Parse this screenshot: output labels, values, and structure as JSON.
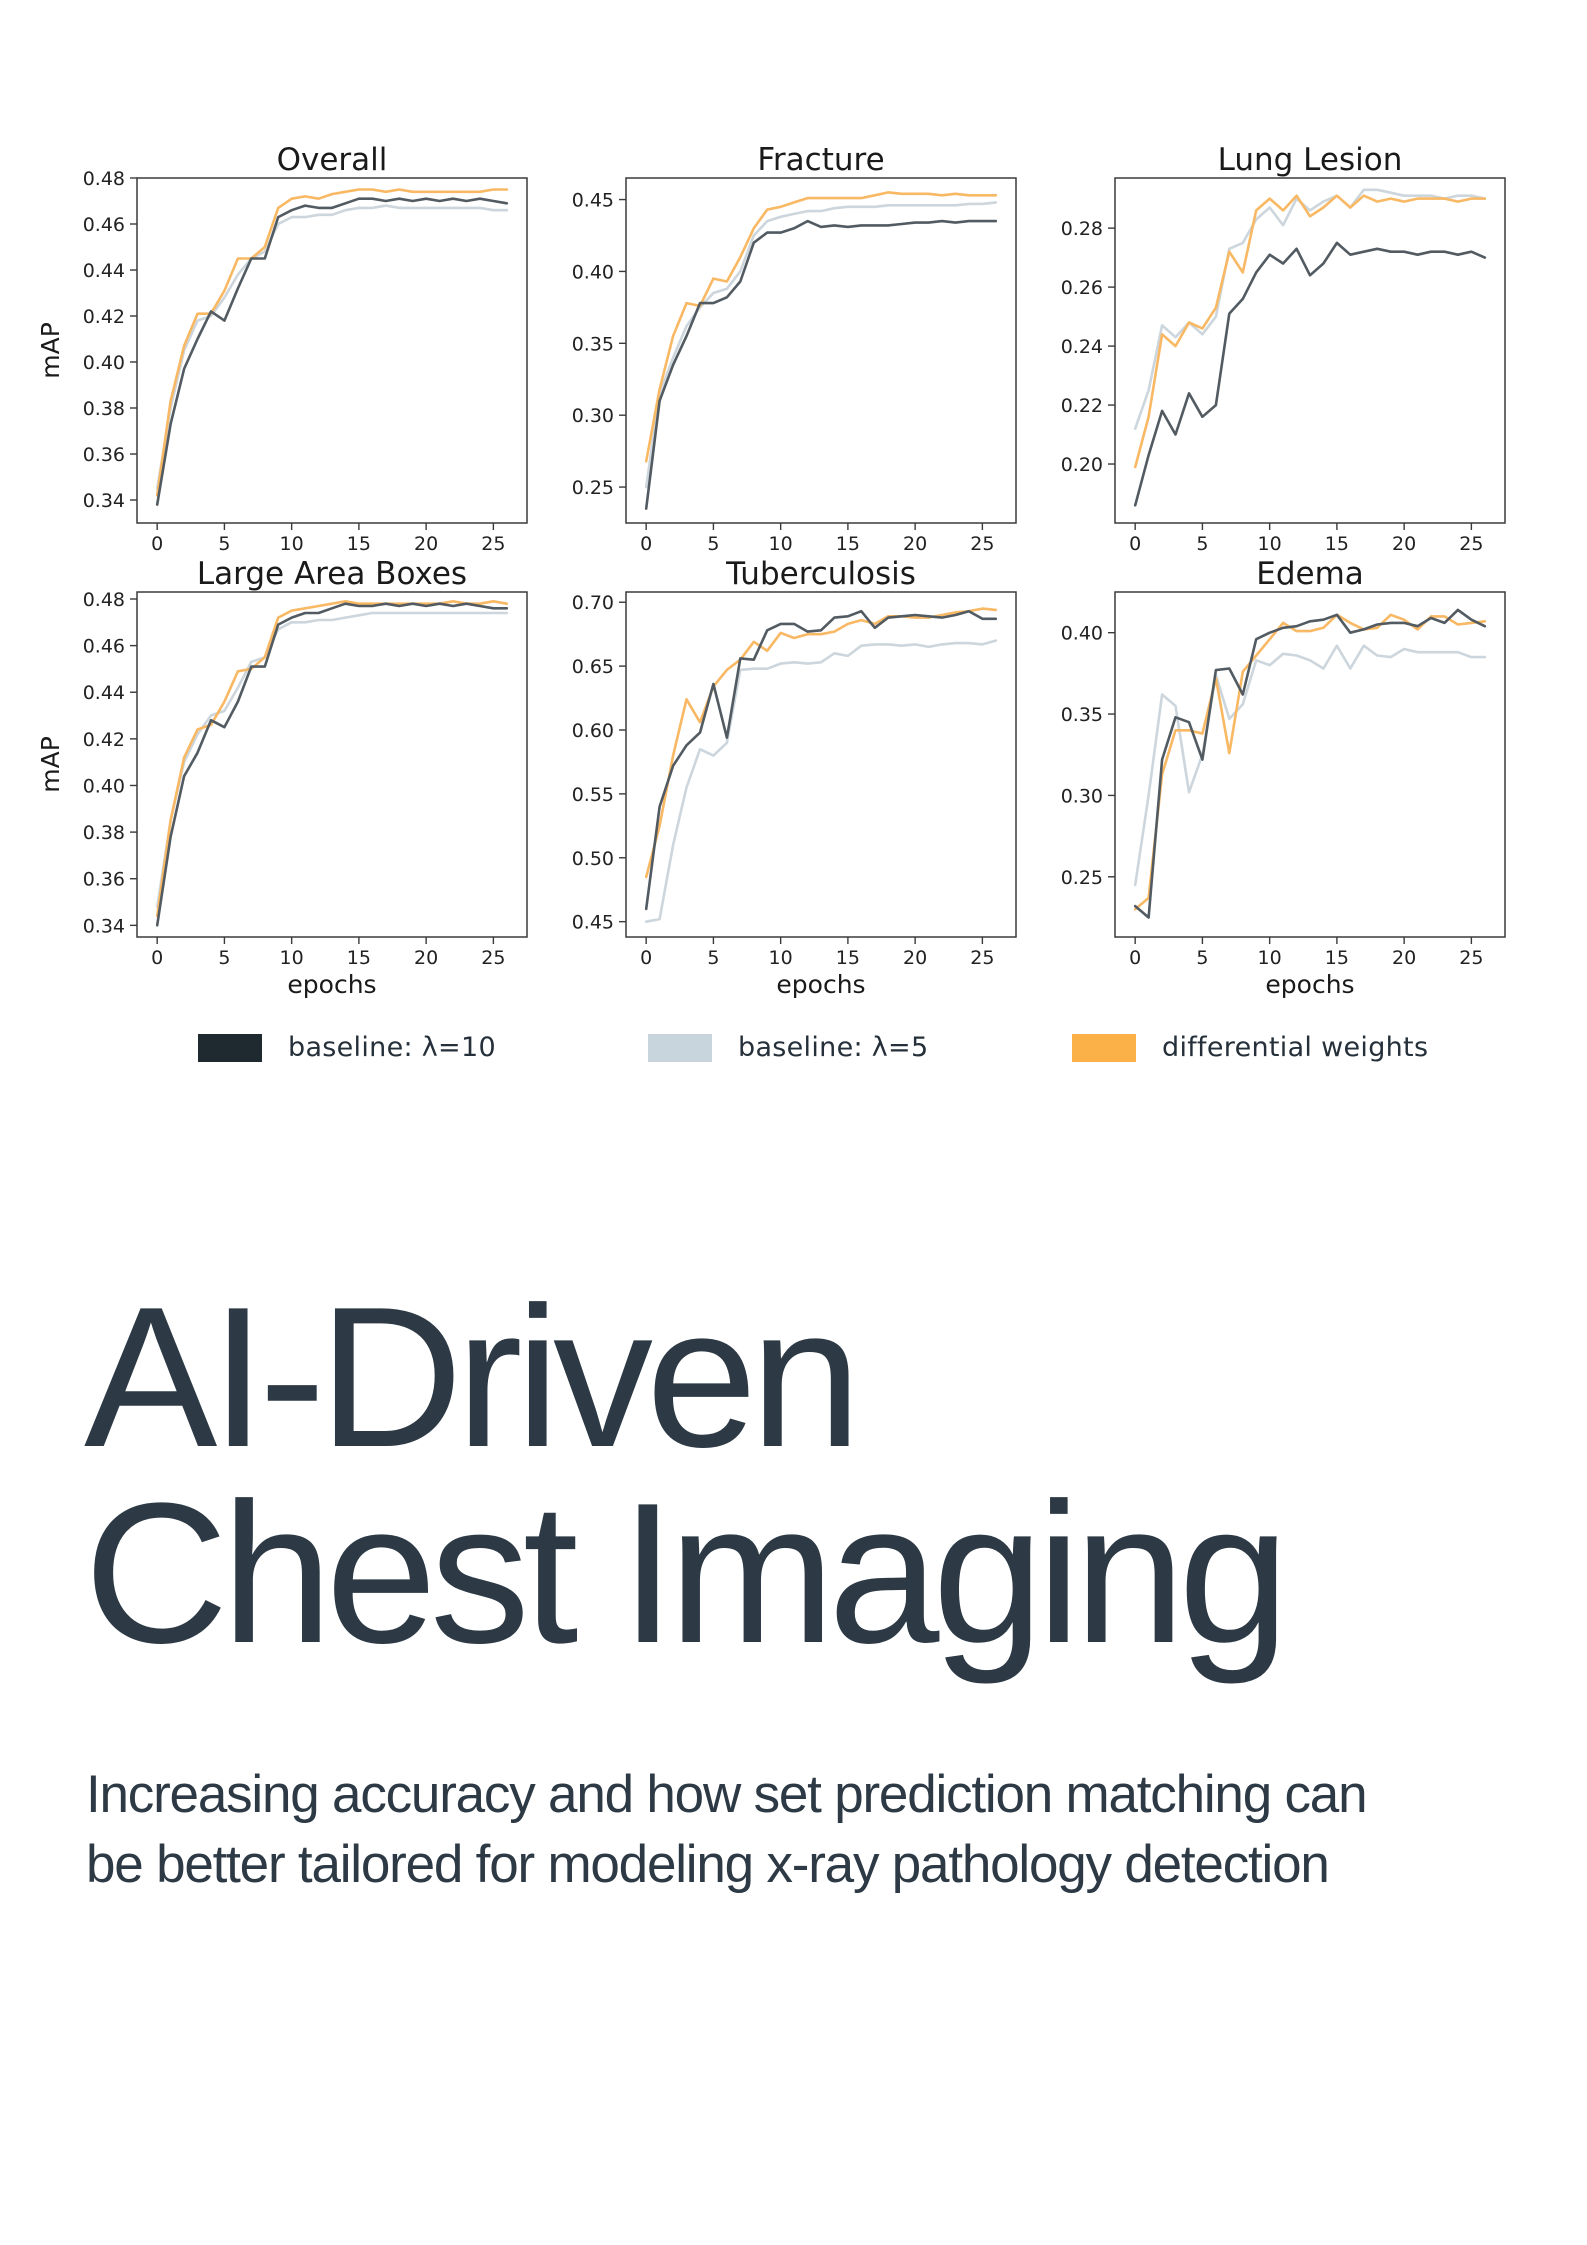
{
  "chart_data": [
    {
      "type": "line",
      "title": "Overall",
      "xlabel": "",
      "ylabel": "mAP",
      "xlim": [
        -1.5,
        27.5
      ],
      "ylim": [
        0.33,
        0.48
      ],
      "xticks": [
        0,
        5,
        10,
        15,
        20,
        25
      ],
      "yticks": [
        0.34,
        0.36,
        0.38,
        0.4,
        0.42,
        0.44,
        0.46,
        0.48
      ],
      "ytick_labels": [
        "0.34",
        "0.36",
        "0.38",
        "0.40",
        "0.42",
        "0.44",
        "0.46",
        "0.48"
      ],
      "x": [
        0,
        1,
        2,
        3,
        4,
        5,
        6,
        7,
        8,
        9,
        10,
        11,
        12,
        13,
        14,
        15,
        16,
        17,
        18,
        19,
        20,
        21,
        22,
        23,
        24,
        25,
        26
      ],
      "series": [
        {
          "name": "baseline: λ=10",
          "values": [
            0.338,
            0.373,
            0.397,
            0.41,
            0.422,
            0.418,
            0.432,
            0.445,
            0.445,
            0.463,
            0.466,
            0.468,
            0.467,
            0.467,
            0.469,
            0.471,
            0.471,
            0.47,
            0.471,
            0.47,
            0.471,
            0.47,
            0.471,
            0.47,
            0.471,
            0.47,
            0.469
          ]
        },
        {
          "name": "baseline: λ=5",
          "values": [
            0.345,
            0.38,
            0.405,
            0.418,
            0.42,
            0.428,
            0.438,
            0.445,
            0.448,
            0.46,
            0.463,
            0.463,
            0.464,
            0.464,
            0.466,
            0.467,
            0.467,
            0.468,
            0.467,
            0.467,
            0.467,
            0.467,
            0.467,
            0.467,
            0.467,
            0.466,
            0.466
          ]
        },
        {
          "name": "differential weights",
          "values": [
            0.342,
            0.383,
            0.407,
            0.421,
            0.421,
            0.431,
            0.445,
            0.445,
            0.45,
            0.467,
            0.471,
            0.472,
            0.471,
            0.473,
            0.474,
            0.475,
            0.475,
            0.474,
            0.475,
            0.474,
            0.474,
            0.474,
            0.474,
            0.474,
            0.474,
            0.475,
            0.475
          ]
        }
      ]
    },
    {
      "type": "line",
      "title": "Fracture",
      "xlabel": "",
      "ylabel": "",
      "xlim": [
        -1.5,
        27.5
      ],
      "ylim": [
        0.225,
        0.465
      ],
      "xticks": [
        0,
        5,
        10,
        15,
        20,
        25
      ],
      "yticks": [
        0.25,
        0.3,
        0.35,
        0.4,
        0.45
      ],
      "ytick_labels": [
        "0.25",
        "0.30",
        "0.35",
        "0.40",
        "0.45"
      ],
      "x": [
        0,
        1,
        2,
        3,
        4,
        5,
        6,
        7,
        8,
        9,
        10,
        11,
        12,
        13,
        14,
        15,
        16,
        17,
        18,
        19,
        20,
        21,
        22,
        23,
        24,
        25,
        26
      ],
      "series": [
        {
          "name": "baseline: λ=10",
          "values": [
            0.235,
            0.31,
            0.335,
            0.355,
            0.378,
            0.378,
            0.382,
            0.393,
            0.42,
            0.427,
            0.427,
            0.43,
            0.435,
            0.431,
            0.432,
            0.431,
            0.432,
            0.432,
            0.432,
            0.433,
            0.434,
            0.434,
            0.435,
            0.434,
            0.435,
            0.435,
            0.435
          ]
        },
        {
          "name": "baseline: λ=5",
          "values": [
            0.25,
            0.315,
            0.34,
            0.362,
            0.375,
            0.385,
            0.388,
            0.4,
            0.425,
            0.435,
            0.438,
            0.44,
            0.442,
            0.442,
            0.444,
            0.445,
            0.445,
            0.445,
            0.446,
            0.446,
            0.446,
            0.446,
            0.446,
            0.446,
            0.447,
            0.447,
            0.448
          ]
        },
        {
          "name": "differential weights",
          "values": [
            0.268,
            0.318,
            0.355,
            0.378,
            0.376,
            0.395,
            0.393,
            0.41,
            0.43,
            0.443,
            0.445,
            0.448,
            0.451,
            0.451,
            0.451,
            0.451,
            0.451,
            0.453,
            0.455,
            0.454,
            0.454,
            0.454,
            0.453,
            0.454,
            0.453,
            0.453,
            0.453
          ]
        }
      ]
    },
    {
      "type": "line",
      "title": "Lung Lesion",
      "xlabel": "",
      "ylabel": "",
      "xlim": [
        -1.5,
        27.5
      ],
      "ylim": [
        0.18,
        0.297
      ],
      "xticks": [
        0,
        5,
        10,
        15,
        20,
        25
      ],
      "yticks": [
        0.2,
        0.22,
        0.24,
        0.26,
        0.28
      ],
      "ytick_labels": [
        "0.20",
        "0.22",
        "0.24",
        "0.26",
        "0.28"
      ],
      "x": [
        0,
        1,
        2,
        3,
        4,
        5,
        6,
        7,
        8,
        9,
        10,
        11,
        12,
        13,
        14,
        15,
        16,
        17,
        18,
        19,
        20,
        21,
        22,
        23,
        24,
        25,
        26
      ],
      "series": [
        {
          "name": "baseline: λ=10",
          "values": [
            0.186,
            0.203,
            0.218,
            0.21,
            0.224,
            0.216,
            0.22,
            0.251,
            0.256,
            0.265,
            0.271,
            0.268,
            0.273,
            0.264,
            0.268,
            0.275,
            0.271,
            0.272,
            0.273,
            0.272,
            0.272,
            0.271,
            0.272,
            0.272,
            0.271,
            0.272,
            0.27
          ]
        },
        {
          "name": "baseline: λ=5",
          "values": [
            0.212,
            0.225,
            0.247,
            0.243,
            0.248,
            0.244,
            0.25,
            0.273,
            0.275,
            0.283,
            0.287,
            0.281,
            0.29,
            0.286,
            0.289,
            0.291,
            0.287,
            0.293,
            0.293,
            0.292,
            0.291,
            0.291,
            0.291,
            0.29,
            0.291,
            0.291,
            0.29
          ]
        },
        {
          "name": "differential weights",
          "values": [
            0.199,
            0.216,
            0.244,
            0.24,
            0.248,
            0.246,
            0.253,
            0.272,
            0.265,
            0.286,
            0.29,
            0.286,
            0.291,
            0.284,
            0.287,
            0.291,
            0.287,
            0.291,
            0.289,
            0.29,
            0.289,
            0.29,
            0.29,
            0.29,
            0.289,
            0.29,
            0.29
          ]
        }
      ]
    },
    {
      "type": "line",
      "title": "Large Area Boxes",
      "xlabel": "epochs",
      "ylabel": "mAP",
      "xlim": [
        -1.5,
        27.5
      ],
      "ylim": [
        0.335,
        0.483
      ],
      "xticks": [
        0,
        5,
        10,
        15,
        20,
        25
      ],
      "yticks": [
        0.34,
        0.36,
        0.38,
        0.4,
        0.42,
        0.44,
        0.46,
        0.48
      ],
      "ytick_labels": [
        "0.34",
        "0.36",
        "0.38",
        "0.40",
        "0.42",
        "0.44",
        "0.46",
        "0.48"
      ],
      "x": [
        0,
        1,
        2,
        3,
        4,
        5,
        6,
        7,
        8,
        9,
        10,
        11,
        12,
        13,
        14,
        15,
        16,
        17,
        18,
        19,
        20,
        21,
        22,
        23,
        24,
        25,
        26
      ],
      "series": [
        {
          "name": "baseline: λ=10",
          "values": [
            0.34,
            0.378,
            0.404,
            0.414,
            0.428,
            0.425,
            0.436,
            0.451,
            0.451,
            0.469,
            0.472,
            0.474,
            0.474,
            0.476,
            0.478,
            0.477,
            0.477,
            0.478,
            0.477,
            0.478,
            0.477,
            0.478,
            0.477,
            0.478,
            0.477,
            0.476,
            0.476
          ]
        },
        {
          "name": "baseline: λ=5",
          "values": [
            0.348,
            0.385,
            0.41,
            0.422,
            0.43,
            0.432,
            0.442,
            0.453,
            0.455,
            0.467,
            0.47,
            0.47,
            0.471,
            0.471,
            0.472,
            0.473,
            0.474,
            0.474,
            0.474,
            0.474,
            0.474,
            0.474,
            0.474,
            0.474,
            0.474,
            0.474,
            0.474
          ]
        },
        {
          "name": "differential weights",
          "values": [
            0.344,
            0.385,
            0.412,
            0.424,
            0.426,
            0.436,
            0.449,
            0.45,
            0.455,
            0.472,
            0.475,
            0.476,
            0.477,
            0.478,
            0.479,
            0.478,
            0.478,
            0.478,
            0.478,
            0.478,
            0.478,
            0.478,
            0.479,
            0.478,
            0.478,
            0.479,
            0.478
          ]
        }
      ]
    },
    {
      "type": "line",
      "title": "Tuberculosis",
      "xlabel": "epochs",
      "ylabel": "",
      "xlim": [
        -1.5,
        27.5
      ],
      "ylim": [
        0.438,
        0.708
      ],
      "xticks": [
        0,
        5,
        10,
        15,
        20,
        25
      ],
      "yticks": [
        0.45,
        0.5,
        0.55,
        0.6,
        0.65,
        0.7
      ],
      "ytick_labels": [
        "0.45",
        "0.50",
        "0.55",
        "0.60",
        "0.65",
        "0.70"
      ],
      "x": [
        0,
        1,
        2,
        3,
        4,
        5,
        6,
        7,
        8,
        9,
        10,
        11,
        12,
        13,
        14,
        15,
        16,
        17,
        18,
        19,
        20,
        21,
        22,
        23,
        24,
        25,
        26
      ],
      "series": [
        {
          "name": "baseline: λ=10",
          "values": [
            0.46,
            0.54,
            0.572,
            0.588,
            0.598,
            0.636,
            0.594,
            0.656,
            0.655,
            0.678,
            0.683,
            0.683,
            0.677,
            0.678,
            0.688,
            0.689,
            0.693,
            0.68,
            0.688,
            0.689,
            0.69,
            0.689,
            0.688,
            0.69,
            0.693,
            0.687,
            0.687
          ]
        },
        {
          "name": "baseline: λ=5",
          "values": [
            0.45,
            0.452,
            0.51,
            0.555,
            0.585,
            0.58,
            0.59,
            0.647,
            0.648,
            0.648,
            0.652,
            0.653,
            0.652,
            0.653,
            0.66,
            0.658,
            0.666,
            0.667,
            0.667,
            0.666,
            0.667,
            0.665,
            0.667,
            0.668,
            0.668,
            0.667,
            0.67
          ]
        },
        {
          "name": "differential weights",
          "values": [
            0.485,
            0.525,
            0.58,
            0.624,
            0.606,
            0.634,
            0.647,
            0.655,
            0.669,
            0.662,
            0.676,
            0.672,
            0.675,
            0.675,
            0.677,
            0.683,
            0.686,
            0.683,
            0.689,
            0.689,
            0.688,
            0.688,
            0.69,
            0.692,
            0.693,
            0.695,
            0.694
          ]
        }
      ]
    },
    {
      "type": "line",
      "title": "Edema",
      "xlabel": "epochs",
      "ylabel": "",
      "xlim": [
        -1.5,
        27.5
      ],
      "ylim": [
        0.213,
        0.425
      ],
      "xticks": [
        0,
        5,
        10,
        15,
        20,
        25
      ],
      "yticks": [
        0.25,
        0.3,
        0.35,
        0.4
      ],
      "ytick_labels": [
        "0.25",
        "0.30",
        "0.35",
        "0.40"
      ],
      "x": [
        0,
        1,
        2,
        3,
        4,
        5,
        6,
        7,
        8,
        9,
        10,
        11,
        12,
        13,
        14,
        15,
        16,
        17,
        18,
        19,
        20,
        21,
        22,
        23,
        24,
        25,
        26
      ],
      "series": [
        {
          "name": "baseline: λ=10",
          "values": [
            0.232,
            0.225,
            0.322,
            0.348,
            0.345,
            0.322,
            0.377,
            0.378,
            0.362,
            0.396,
            0.4,
            0.403,
            0.404,
            0.407,
            0.408,
            0.411,
            0.4,
            0.402,
            0.405,
            0.406,
            0.406,
            0.404,
            0.409,
            0.406,
            0.414,
            0.408,
            0.404
          ]
        },
        {
          "name": "baseline: λ=5",
          "values": [
            0.245,
            0.3,
            0.362,
            0.355,
            0.302,
            0.325,
            0.374,
            0.347,
            0.356,
            0.383,
            0.38,
            0.387,
            0.386,
            0.383,
            0.378,
            0.392,
            0.378,
            0.392,
            0.386,
            0.385,
            0.39,
            0.388,
            0.388,
            0.388,
            0.388,
            0.385,
            0.385
          ]
        },
        {
          "name": "differential weights",
          "values": [
            0.23,
            0.237,
            0.313,
            0.34,
            0.34,
            0.338,
            0.372,
            0.326,
            0.376,
            0.386,
            0.396,
            0.406,
            0.401,
            0.401,
            0.403,
            0.411,
            0.406,
            0.402,
            0.403,
            0.411,
            0.408,
            0.402,
            0.41,
            0.41,
            0.405,
            0.406,
            0.407
          ]
        }
      ]
    }
  ],
  "legend": [
    {
      "label": "baseline: λ=10",
      "color": "#1e2a30"
    },
    {
      "label": "baseline: λ=5",
      "color": "#c9d5dc"
    },
    {
      "label": "differential weights",
      "color": "#fbb048"
    }
  ],
  "series_colors": {
    "baseline: λ=10": "#525b62",
    "baseline: λ=5": "#ccd6dc",
    "differential weights": "#f8b864"
  },
  "headline": {
    "line1": "AI-Driven",
    "line2": "Chest Imaging"
  },
  "subtitle": {
    "line1": "Increasing accuracy and how set prediction matching can",
    "line2": "be better tailored for modeling x-ray pathology detection"
  }
}
